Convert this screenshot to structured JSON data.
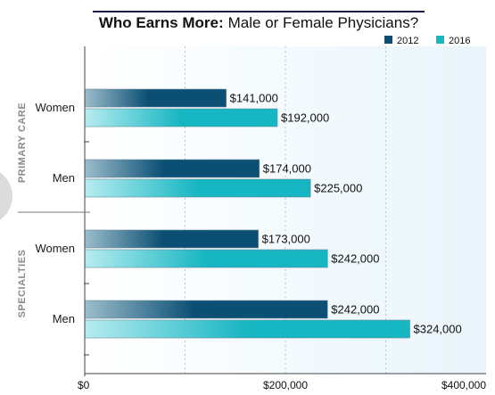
{
  "title_bold": "Who Earns More:",
  "title_rest": "Male or Female Physicians?",
  "legend": [
    {
      "label": "2012",
      "color": "#0b4f74"
    },
    {
      "label": "2016",
      "color": "#16b6c2"
    }
  ],
  "groups": [
    {
      "label": "PRIMARY CARE"
    },
    {
      "label": "SPECIALTIES"
    }
  ],
  "x_ticks": [
    "$0",
    "$200,000",
    "$400,000"
  ],
  "chart_data": {
    "type": "bar",
    "orientation": "horizontal",
    "title": "Who Earns More: Male or Female Physicians?",
    "categories": [
      "Women",
      "Men",
      "Women",
      "Men"
    ],
    "category_groups": [
      "PRIMARY CARE",
      "PRIMARY CARE",
      "SPECIALTIES",
      "SPECIALTIES"
    ],
    "series": [
      {
        "name": "2012",
        "values": [
          141000,
          174000,
          173000,
          242000
        ],
        "labels": [
          "$141,000",
          "$174,000",
          "$173,000",
          "$242,000"
        ],
        "color": "#0b4f74"
      },
      {
        "name": "2016",
        "values": [
          192000,
          225000,
          242000,
          324000
        ],
        "labels": [
          "$192,000",
          "$225,000",
          "$242,000",
          "$324,000"
        ],
        "color": "#16b6c2"
      }
    ],
    "xlim": [
      0,
      400000
    ],
    "xticks": [
      0,
      200000,
      400000
    ],
    "xlabel": "",
    "ylabel": "",
    "grid": true,
    "legend_position": "top-right"
  }
}
